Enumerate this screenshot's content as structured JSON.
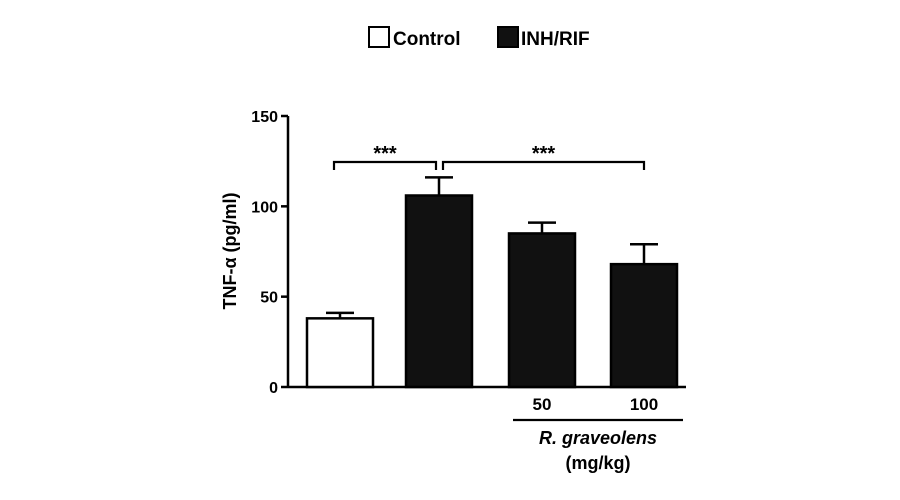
{
  "chart_data": {
    "type": "bar",
    "ylabel": "TNF-α (pg/ml)",
    "ylim": [
      0,
      150
    ],
    "yticks": [
      0,
      50,
      100,
      150
    ],
    "legend_placement": "top-center",
    "legend": [
      {
        "label": "Control",
        "fill": "#ffffff"
      },
      {
        "label": "INH/RIF",
        "fill": "#111111"
      }
    ],
    "bars": [
      {
        "group": "Control",
        "x_label": "",
        "value": 38,
        "error": 3,
        "fill": "#ffffff"
      },
      {
        "group": "INH/RIF",
        "x_label": "",
        "value": 106,
        "error": 10,
        "fill": "#111111"
      },
      {
        "group": "INH/RIF",
        "x_label": "50",
        "value": 85,
        "error": 6,
        "fill": "#111111"
      },
      {
        "group": "INH/RIF",
        "x_label": "100",
        "value": 68,
        "error": 11,
        "fill": "#111111"
      }
    ],
    "dose_group": {
      "label_line1": "R. graveolens",
      "label_line2": "(mg/kg)",
      "bar_indices": [
        2,
        3
      ]
    },
    "significance": [
      {
        "from": 0,
        "to": 1,
        "label": "***"
      },
      {
        "from": 1,
        "to": 3,
        "label": "***"
      }
    ]
  }
}
